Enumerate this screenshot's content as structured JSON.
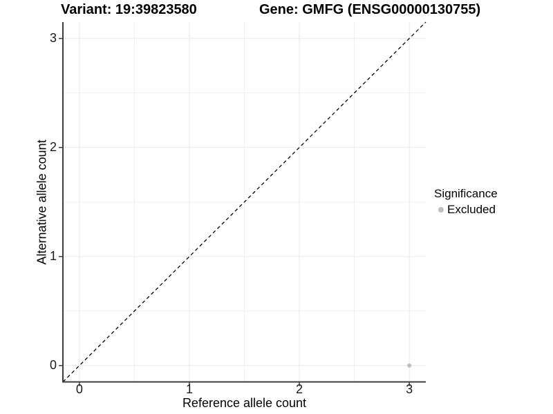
{
  "chart_data": {
    "type": "scatter",
    "titles": {
      "left": "Variant: 19:39823580",
      "right": "Gene: GMFG (ENSG00000130755)"
    },
    "xlabel": "Reference allele count",
    "ylabel": "Alternative allele count",
    "xlim": [
      -0.15,
      3.15
    ],
    "ylim": [
      -0.15,
      3.15
    ],
    "xticks": [
      0,
      1,
      2,
      3
    ],
    "yticks": [
      0,
      1,
      2,
      3
    ],
    "xtick_labels": [
      "0",
      "1",
      "2",
      "3"
    ],
    "ytick_labels": [
      "0",
      "1",
      "2",
      "3"
    ],
    "minor_gridlines_x": [
      0.5,
      1.5,
      2.5
    ],
    "minor_gridlines_y": [
      0.5,
      1.5,
      2.5
    ],
    "grid": "on",
    "identity_line": {
      "style": "dashed",
      "x1": -0.15,
      "y1": -0.15,
      "x2": 3.15,
      "y2": 3.15
    },
    "series": [
      {
        "name": "Excluded",
        "color": "#bebebe",
        "points": [
          {
            "x": 3,
            "y": 0
          }
        ]
      }
    ],
    "legend": {
      "title": "Significance",
      "position": "right",
      "entries": [
        {
          "label": "Excluded",
          "color": "#bebebe"
        }
      ]
    }
  },
  "colors": {
    "background": "#ffffff",
    "grid_major": "#e7e7e7",
    "grid_minor": "#efefef",
    "axis_line": "#3c3c3c",
    "tick_mark": "#3c3c3c",
    "identity_line": "#000000",
    "text": "#000000",
    "point": "#bebebe"
  }
}
